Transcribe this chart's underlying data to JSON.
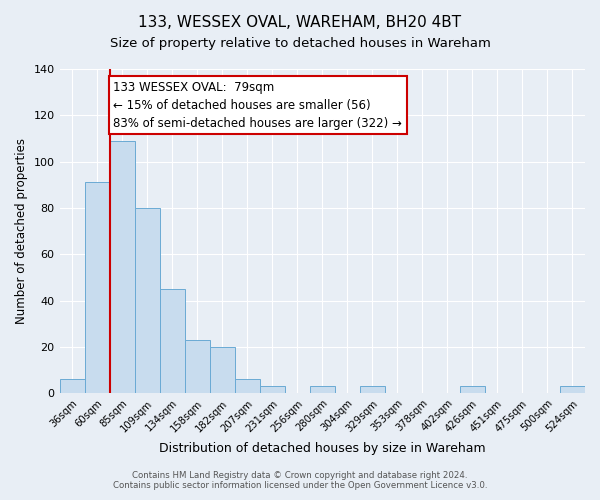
{
  "title": "133, WESSEX OVAL, WAREHAM, BH20 4BT",
  "subtitle": "Size of property relative to detached houses in Wareham",
  "xlabel": "Distribution of detached houses by size in Wareham",
  "ylabel": "Number of detached properties",
  "bin_labels": [
    "36sqm",
    "60sqm",
    "85sqm",
    "109sqm",
    "134sqm",
    "158sqm",
    "182sqm",
    "207sqm",
    "231sqm",
    "256sqm",
    "280sqm",
    "304sqm",
    "329sqm",
    "353sqm",
    "378sqm",
    "402sqm",
    "426sqm",
    "451sqm",
    "475sqm",
    "500sqm",
    "524sqm"
  ],
  "bar_values": [
    6,
    91,
    109,
    80,
    45,
    23,
    20,
    6,
    3,
    0,
    3,
    0,
    3,
    0,
    0,
    0,
    3,
    0,
    0,
    0,
    3
  ],
  "bar_color": "#c8dcee",
  "bar_edgecolor": "#6aaad4",
  "vline_color": "#cc0000",
  "annotation_text": "133 WESSEX OVAL:  79sqm\n← 15% of detached houses are smaller (56)\n83% of semi-detached houses are larger (322) →",
  "annotation_box_edgecolor": "#cc0000",
  "annotation_fontsize": 8.5,
  "ylim": [
    0,
    140
  ],
  "yticks": [
    0,
    20,
    40,
    60,
    80,
    100,
    120,
    140
  ],
  "title_fontsize": 11,
  "subtitle_fontsize": 9.5,
  "xlabel_fontsize": 9,
  "ylabel_fontsize": 8.5,
  "footer_line1": "Contains HM Land Registry data © Crown copyright and database right 2024.",
  "footer_line2": "Contains public sector information licensed under the Open Government Licence v3.0.",
  "background_color": "#e8eef5",
  "plot_background_color": "#e8eef5",
  "grid_color": "#ffffff"
}
